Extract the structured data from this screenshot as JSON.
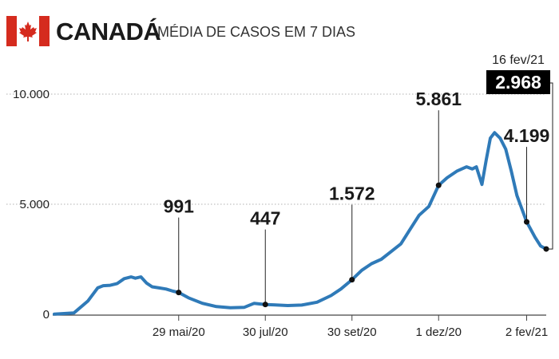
{
  "header": {
    "country": "CANADÁ",
    "subtitle": "MÉDIA DE CASOS EM 7 DIAS",
    "flag_colors": {
      "red": "#d52b1e",
      "white": "#ffffff"
    }
  },
  "colors": {
    "line": "#2f7ab8",
    "text": "#1a1a1a",
    "grid": "#b0b0b0",
    "highlight_bg": "#000000"
  },
  "chart_data": {
    "type": "line",
    "title": "MÉDIA DE CASOS EM 7 DIAS",
    "xlabel": "",
    "ylabel": "",
    "ylim": [
      0,
      10000
    ],
    "y_ticks": [
      0,
      5000,
      10000
    ],
    "y_tick_labels": [
      "0",
      "5.000",
      "10.000"
    ],
    "x_tick_labels": [
      "29 mai/20",
      "30 jul/20",
      "30 set/20",
      "1 dez/20",
      "2 fev/21"
    ],
    "x_tick_dates": [
      "2020-05-29",
      "2020-07-30",
      "2020-09-30",
      "2020-12-01",
      "2021-02-02"
    ],
    "x_range": [
      "2020-03-01",
      "2021-02-16"
    ],
    "grid": "horizontal dotted",
    "series": [
      {
        "points": [
          [
            "2020-03-01",
            10
          ],
          [
            "2020-03-15",
            60
          ],
          [
            "2020-03-25",
            600
          ],
          [
            "2020-04-01",
            1200
          ],
          [
            "2020-04-05",
            1300
          ],
          [
            "2020-04-10",
            1320
          ],
          [
            "2020-04-15",
            1400
          ],
          [
            "2020-04-20",
            1620
          ],
          [
            "2020-04-25",
            1700
          ],
          [
            "2020-04-28",
            1640
          ],
          [
            "2020-05-02",
            1700
          ],
          [
            "2020-05-06",
            1420
          ],
          [
            "2020-05-10",
            1250
          ],
          [
            "2020-05-15",
            1200
          ],
          [
            "2020-05-20",
            1150
          ],
          [
            "2020-05-25",
            1050
          ],
          [
            "2020-05-29",
            991
          ],
          [
            "2020-06-05",
            750
          ],
          [
            "2020-06-15",
            500
          ],
          [
            "2020-06-25",
            350
          ],
          [
            "2020-07-05",
            300
          ],
          [
            "2020-07-15",
            320
          ],
          [
            "2020-07-22",
            500
          ],
          [
            "2020-07-30",
            447
          ],
          [
            "2020-08-05",
            430
          ],
          [
            "2020-08-15",
            400
          ],
          [
            "2020-08-25",
            420
          ],
          [
            "2020-09-05",
            550
          ],
          [
            "2020-09-15",
            850
          ],
          [
            "2020-09-22",
            1150
          ],
          [
            "2020-09-30",
            1572
          ],
          [
            "2020-10-07",
            2000
          ],
          [
            "2020-10-14",
            2300
          ],
          [
            "2020-10-21",
            2500
          ],
          [
            "2020-10-28",
            2850
          ],
          [
            "2020-11-04",
            3200
          ],
          [
            "2020-11-10",
            3800
          ],
          [
            "2020-11-17",
            4500
          ],
          [
            "2020-11-24",
            4900
          ],
          [
            "2020-12-01",
            5861
          ],
          [
            "2020-12-07",
            6200
          ],
          [
            "2020-12-14",
            6500
          ],
          [
            "2020-12-21",
            6700
          ],
          [
            "2020-12-25",
            6600
          ],
          [
            "2020-12-28",
            6700
          ],
          [
            "2021-01-01",
            5900
          ],
          [
            "2021-01-04",
            7000
          ],
          [
            "2021-01-07",
            8000
          ],
          [
            "2021-01-10",
            8250
          ],
          [
            "2021-01-14",
            8000
          ],
          [
            "2021-01-18",
            7500
          ],
          [
            "2021-01-22",
            6500
          ],
          [
            "2021-01-26",
            5400
          ],
          [
            "2021-02-02",
            4199
          ],
          [
            "2021-02-08",
            3500
          ],
          [
            "2021-02-12",
            3100
          ],
          [
            "2021-02-16",
            2968
          ]
        ]
      }
    ],
    "annotations": [
      {
        "date": "2020-05-29",
        "value": 991,
        "label": "991"
      },
      {
        "date": "2020-07-30",
        "value": 447,
        "label": "447"
      },
      {
        "date": "2020-09-30",
        "value": 1572,
        "label": "1.572"
      },
      {
        "date": "2020-12-01",
        "value": 5861,
        "label": "5.861"
      },
      {
        "date": "2021-02-02",
        "value": 4199,
        "label": "4.199"
      }
    ],
    "highlight": {
      "date": "2021-02-16",
      "date_label": "16 fev/21",
      "value": 2968,
      "label": "2.968"
    }
  }
}
